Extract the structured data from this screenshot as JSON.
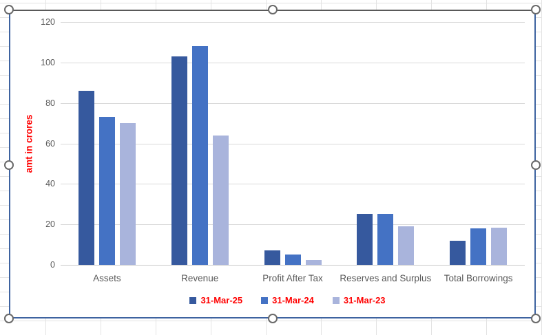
{
  "chart_data": {
    "type": "bar",
    "title": "",
    "ylabel": "amt in crores",
    "xlabel": "",
    "categories": [
      "Assets",
      "Revenue",
      "Profit After Tax",
      "Reserves and Surplus",
      "Total Borrowings"
    ],
    "series": [
      {
        "name": "31-Mar-25",
        "color": "#36599E",
        "values": [
          86,
          103,
          7,
          25,
          12
        ]
      },
      {
        "name": "31-Mar-24",
        "color": "#4472C4",
        "values": [
          73,
          108,
          5,
          25,
          18
        ]
      },
      {
        "name": "31-Mar-23",
        "color": "#A9B4DC",
        "values": [
          70,
          64,
          2.5,
          19,
          18.5
        ]
      }
    ],
    "ylim": [
      0,
      120
    ],
    "yticks": [
      0,
      20,
      40,
      60,
      80,
      100,
      120
    ],
    "grid": true,
    "legend_position": "bottom",
    "colors": {
      "ylabel_text": "#FF0000",
      "legend_text": "#FF0000",
      "axis_text": "#595959",
      "gridline": "#D9D9D9",
      "axis_line": "#C9C9C9",
      "selection_border_blue": "#3E63A0",
      "selection_border_top": "#595959"
    }
  },
  "ui": {
    "handles": [
      "top-left",
      "top-center",
      "top-right",
      "middle-left",
      "middle-right",
      "bottom-left",
      "bottom-center",
      "bottom-right"
    ]
  }
}
